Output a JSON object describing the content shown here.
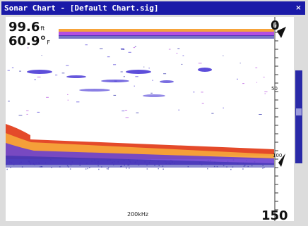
{
  "window": {
    "title": "Sonar Chart - [Default Chart.sig]",
    "close_glyph": "×"
  },
  "readouts": {
    "depth": {
      "value": "99.6",
      "unit": "ft"
    },
    "temperature": {
      "value": "60.9°",
      "unit": "F"
    }
  },
  "depth_scale": {
    "top_label": "0",
    "mid_label": "50",
    "bottom_current_label": "100",
    "bottom_label": "150"
  },
  "frequency": "200kHz",
  "colors": {
    "title_bar": "#1a1aa8",
    "surface_clutter": "#b34fe0",
    "bottom_red": "#e44a2a",
    "bottom_orange": "#f6a33a",
    "bottom_purple": "#6a3fd0",
    "bottom_blue": "#2a2aa8",
    "fish_arch": "#4b3bd6"
  }
}
